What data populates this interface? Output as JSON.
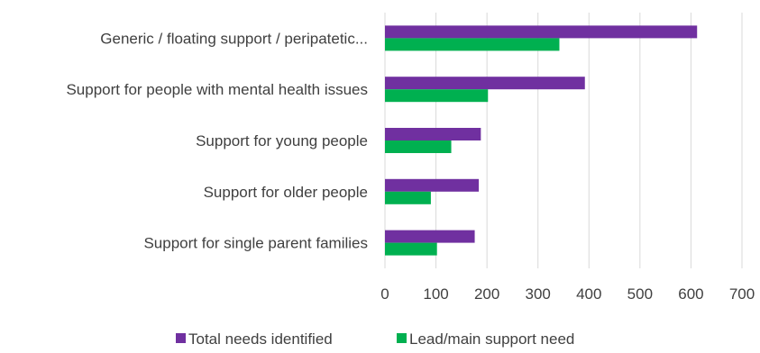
{
  "chart_data": {
    "type": "bar",
    "orientation": "horizontal",
    "categories": [
      "Generic / floating support / peripatetic...",
      "Support for people with mental health issues",
      "Support for young people",
      "Support for older people",
      "Support for single parent families"
    ],
    "series": [
      {
        "name": "Total needs identified",
        "color": "#7030a0",
        "values": [
          612,
          392,
          188,
          184,
          176
        ]
      },
      {
        "name": "Lead/main support need",
        "color": "#00b050",
        "values": [
          342,
          202,
          130,
          90,
          102
        ]
      }
    ],
    "xlim": [
      0,
      700
    ],
    "xticks": [
      0,
      100,
      200,
      300,
      400,
      500,
      600,
      700
    ],
    "grid": true,
    "legend_position": "bottom"
  }
}
